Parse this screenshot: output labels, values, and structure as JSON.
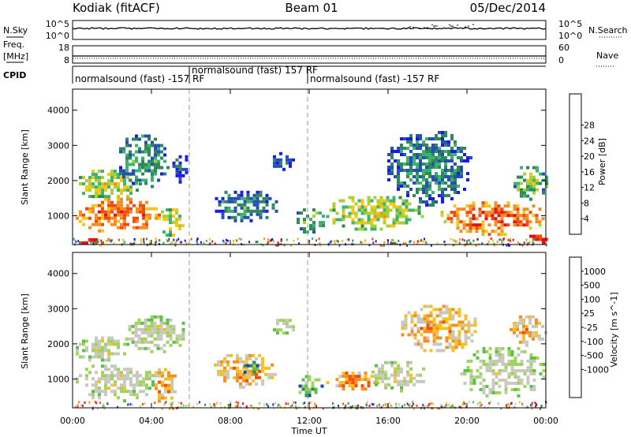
{
  "header": {
    "station": "Kodiak (fitACF)",
    "beam": "Beam 01",
    "date": "05/Dec/2014"
  },
  "status_panels": {
    "nsky": {
      "label": "N.Sky",
      "ticks": [
        "10^5",
        "10^0"
      ],
      "right_label": "N.Search",
      "right_ticks": [
        "10^5",
        "10^0"
      ]
    },
    "freq": {
      "label_lines": [
        "Freq.",
        "[MHz]"
      ],
      "ticks": [
        "18",
        "8"
      ],
      "right_label": "Nave",
      "right_ticks": [
        "60",
        "0"
      ]
    },
    "cpid": {
      "label": "CPID",
      "segments": [
        {
          "text": "normalsound (fast) -157 RF",
          "start_hour": 0,
          "end_hour": 6
        },
        {
          "text": "normalsound (fast) 157 RF",
          "start_hour": 6,
          "end_hour": 12
        },
        {
          "text": "normalsound (fast) -157 RF",
          "start_hour": 12,
          "end_hour": 24
        }
      ]
    }
  },
  "chart_data": [
    {
      "type": "heatmap",
      "title": "",
      "xlabel": "Time UT",
      "ylabel": "Slant Range [km]",
      "xlim": [
        0,
        24
      ],
      "ylim": [
        180,
        4600
      ],
      "x_ticks": [
        "00:00",
        "04:00",
        "08:00",
        "12:00",
        "16:00",
        "20:00",
        "00:00"
      ],
      "y_ticks": [
        1000,
        2000,
        3000,
        4000
      ],
      "mode_boundaries_hours": [
        6,
        12
      ],
      "colorbar": {
        "label": "Power [dB]",
        "ticks": [
          4,
          8,
          12,
          16,
          20,
          24,
          28
        ],
        "colors": [
          "#1a1aee",
          "#2450b4",
          "#2e8b57",
          "#3cb371",
          "#a8d030",
          "#f5c518",
          "#f58d20",
          "#f04a10",
          "#e81010"
        ]
      },
      "blobs": [
        {
          "t0": 0.0,
          "t1": 4.6,
          "r0": 550,
          "r1": 1600,
          "level": 0.8
        },
        {
          "t0": 0.0,
          "t1": 3.4,
          "r0": 1500,
          "r1": 2400,
          "level": 0.55
        },
        {
          "t0": 2.2,
          "t1": 4.8,
          "r0": 1800,
          "r1": 3400,
          "level": 0.35
        },
        {
          "t0": 0.0,
          "t1": 1.8,
          "r0": 200,
          "r1": 450,
          "level": 0.95
        },
        {
          "t0": 4.4,
          "t1": 5.6,
          "r0": 400,
          "r1": 1300,
          "level": 0.55
        },
        {
          "t0": 4.9,
          "t1": 5.8,
          "r0": 2000,
          "r1": 2900,
          "level": 0.15
        },
        {
          "t0": 6.9,
          "t1": 10.4,
          "r0": 850,
          "r1": 1800,
          "level": 0.3
        },
        {
          "t0": 10.0,
          "t1": 11.3,
          "r0": 2350,
          "r1": 2900,
          "level": 0.2
        },
        {
          "t0": 11.2,
          "t1": 12.7,
          "r0": 500,
          "r1": 1300,
          "level": 0.4
        },
        {
          "t0": 12.7,
          "t1": 17.8,
          "r0": 600,
          "r1": 1650,
          "level": 0.55
        },
        {
          "t0": 15.8,
          "t1": 20.2,
          "r0": 1300,
          "r1": 3500,
          "level": 0.3
        },
        {
          "t0": 18.5,
          "t1": 24.0,
          "r0": 500,
          "r1": 1500,
          "level": 0.82
        },
        {
          "t0": 22.2,
          "t1": 24.0,
          "r0": 1500,
          "r1": 2500,
          "level": 0.45
        },
        {
          "t0": 23.0,
          "t1": 24.0,
          "r0": 250,
          "r1": 550,
          "level": 0.95
        }
      ]
    },
    {
      "type": "heatmap",
      "title": "",
      "xlabel": "Time UT",
      "ylabel": "Slant Range [km]",
      "xlim": [
        0,
        24
      ],
      "ylim": [
        180,
        4600
      ],
      "x_ticks": [
        "00:00",
        "04:00",
        "08:00",
        "12:00",
        "16:00",
        "20:00",
        "00:00"
      ],
      "y_ticks": [
        1000,
        2000,
        3000,
        4000
      ],
      "mode_boundaries_hours": [
        6,
        12
      ],
      "colorbar": {
        "label": "Velocity [m s^-1]",
        "ticks": [
          "1000",
          "500",
          "100",
          "25",
          "-25",
          "-100",
          "-500",
          "-1000"
        ],
        "colors": [
          "#1f3fbf",
          "#2e8b57",
          "#5cbf4a",
          "#9fd45a",
          "#c8c8c0",
          "#c8c8c0",
          "#f5c020",
          "#f59020",
          "#f05010",
          "#e81010"
        ]
      },
      "blobs": [
        {
          "t0": 0.0,
          "t1": 4.2,
          "r0": 400,
          "r1": 1500,
          "level": 0.5
        },
        {
          "t0": 0.0,
          "t1": 2.8,
          "r0": 1500,
          "r1": 2300,
          "level": 0.5
        },
        {
          "t0": 2.5,
          "t1": 5.8,
          "r0": 1800,
          "r1": 2900,
          "level": 0.48
        },
        {
          "t0": 4.0,
          "t1": 5.2,
          "r0": 350,
          "r1": 1400,
          "level": 0.75
        },
        {
          "t0": 7.0,
          "t1": 10.3,
          "r0": 800,
          "r1": 1800,
          "level": 0.72
        },
        {
          "t0": 8.5,
          "t1": 9.5,
          "r0": 1100,
          "r1": 1600,
          "level": 0.25
        },
        {
          "t0": 10.0,
          "t1": 11.2,
          "r0": 2300,
          "r1": 2800,
          "level": 0.5
        },
        {
          "t0": 11.3,
          "t1": 12.6,
          "r0": 500,
          "r1": 1200,
          "level": 0.3
        },
        {
          "t0": 12.7,
          "t1": 15.5,
          "r0": 700,
          "r1": 1300,
          "level": 0.78
        },
        {
          "t0": 15.0,
          "t1": 18.0,
          "r0": 700,
          "r1": 1600,
          "level": 0.5
        },
        {
          "t0": 16.5,
          "t1": 20.5,
          "r0": 1800,
          "r1": 3200,
          "level": 0.72
        },
        {
          "t0": 19.5,
          "t1": 24.0,
          "r0": 500,
          "r1": 2000,
          "level": 0.48
        },
        {
          "t0": 22.0,
          "t1": 24.0,
          "r0": 2000,
          "r1": 2900,
          "level": 0.7
        }
      ]
    }
  ]
}
